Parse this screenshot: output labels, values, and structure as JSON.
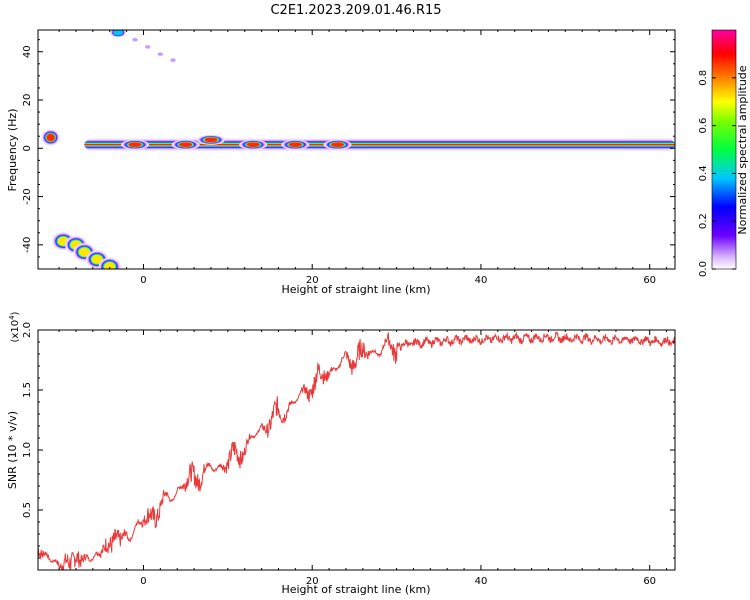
{
  "title": "C2E1.2023.209.01.46.R15",
  "chart_data": [
    {
      "type": "heatmap",
      "xlabel": "Height of straight line (km)",
      "ylabel": "Frequency (Hz)",
      "xlim": [
        -12.5,
        63
      ],
      "ylim": [
        -50,
        49
      ],
      "x_ticks": [
        "0",
        "20",
        "40",
        "60"
      ],
      "y_ticks": [
        "40",
        "20",
        "0",
        "-20",
        "-40"
      ],
      "colorbar": {
        "label": "Normalized spectral amplitude",
        "range": [
          0,
          1
        ],
        "ticks": [
          "0.0",
          "0.2",
          "0.4",
          "0.6",
          "0.8"
        ]
      },
      "features": [
        {
          "x_start": -7,
          "x_end": 63,
          "frequency": 1.5,
          "amplitude": 0.95
        },
        {
          "x_start": -12,
          "x_end": -10,
          "frequency": 4.5,
          "amplitude": 0.8
        },
        {
          "x_start": -10,
          "x_end": -4,
          "frequency": -40,
          "amplitude": 0.75
        },
        {
          "x_start": -5,
          "x_end": 4,
          "frequency": 40,
          "amplitude": 0.2
        }
      ]
    },
    {
      "type": "line",
      "xlabel": "Height of straight line (km)",
      "ylabel": "SNR (10 * v/v)",
      "scale_note": "(x10^4)",
      "xlim": [
        -12.5,
        63
      ],
      "ylim": [
        0,
        2.0
      ],
      "x_ticks": [
        "0",
        "20",
        "40",
        "60"
      ],
      "y_ticks": [
        "0.5",
        "1.0",
        "1.5",
        "2.0"
      ],
      "color": "#e83a3a",
      "x": [
        -12.5,
        -10,
        -8,
        -6,
        -4,
        -2,
        0,
        2,
        4,
        6,
        8,
        10,
        12,
        14,
        16,
        18,
        20,
        22,
        24,
        26,
        28,
        30,
        32,
        34,
        36,
        38,
        40,
        42,
        44,
        46,
        48,
        50,
        52,
        54,
        56,
        58,
        60,
        63
      ],
      "values": [
        0.17,
        0.04,
        0.09,
        0.1,
        0.22,
        0.3,
        0.4,
        0.52,
        0.67,
        0.78,
        0.84,
        0.9,
        1.02,
        1.18,
        1.3,
        1.4,
        1.55,
        1.66,
        1.74,
        1.8,
        1.84,
        1.87,
        1.89,
        1.9,
        1.91,
        1.92,
        1.92,
        1.93,
        1.93,
        1.93,
        1.94,
        1.93,
        1.93,
        1.92,
        1.92,
        1.92,
        1.91,
        1.9
      ]
    }
  ]
}
